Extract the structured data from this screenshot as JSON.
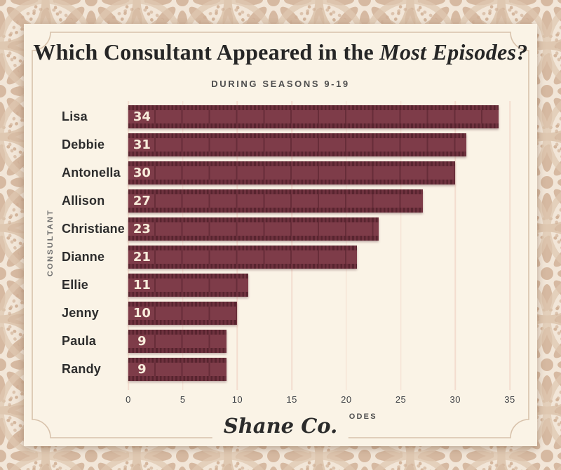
{
  "header": {
    "title_regular": "Which Consultant Appeared in the ",
    "title_italic": "Most Episodes?",
    "subtitle": "DURING SEASONS 9-19"
  },
  "chart_data": {
    "type": "bar",
    "orientation": "horizontal",
    "title": "Which Consultant Appeared in the Most Episodes?",
    "subtitle": "DURING SEASONS 9-19",
    "categories": [
      "Lisa",
      "Debbie",
      "Antonella",
      "Allison",
      "Christiane",
      "Dianne",
      "Ellie",
      "Jenny",
      "Paula",
      "Randy"
    ],
    "values": [
      34,
      31,
      30,
      27,
      23,
      21,
      11,
      10,
      9,
      9
    ],
    "bar_labels": [
      "34",
      "31",
      "30",
      "27",
      "23",
      "21",
      "11",
      "10",
      "9",
      "9"
    ],
    "xlabel": "NUMBER OF EPISODES",
    "ylabel": "CONSULTANT",
    "xlim": [
      0,
      35
    ],
    "xticks": [
      0,
      5,
      10,
      15,
      20,
      25,
      30,
      35
    ],
    "grid": true,
    "legend": false,
    "bar_style": "filmstrip"
  },
  "footer": {
    "logo": "Shane Co."
  },
  "colors": {
    "bar_body": "#7e3c49",
    "bar_frame_divider": "#672d39",
    "bar_sprocket_band": "#6f323f",
    "bar_sprocket_hole": "#58242f",
    "bar_value_text": "#f8ecdb",
    "card_background": "#faf3e6",
    "frame_line": "#d8c2ab",
    "gridline": "#f3ddcf",
    "title_text": "#262626",
    "pattern_base": "#f2e6d8",
    "pattern_motif": "#d6b9a1"
  }
}
